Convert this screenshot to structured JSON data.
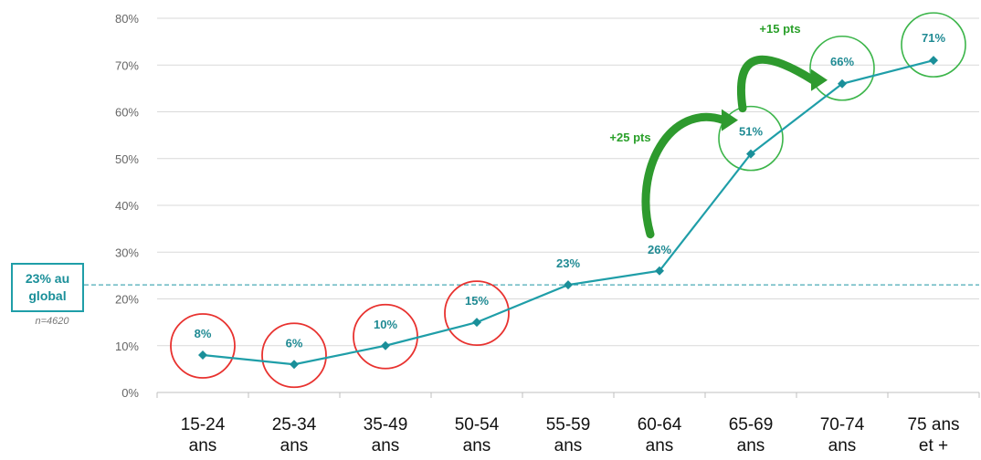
{
  "chart_data": {
    "type": "line",
    "categories": [
      [
        "15-24",
        "ans"
      ],
      [
        "25-34",
        "ans"
      ],
      [
        "35-49",
        "ans"
      ],
      [
        "50-54",
        "ans"
      ],
      [
        "55-59",
        "ans"
      ],
      [
        "60-64",
        "ans"
      ],
      [
        "65-69",
        "ans"
      ],
      [
        "70-74",
        "ans"
      ],
      [
        "75 ans",
        "et +"
      ]
    ],
    "values": [
      8,
      6,
      10,
      15,
      23,
      26,
      51,
      66,
      71
    ],
    "data_labels": [
      "8%",
      "6%",
      "10%",
      "15%",
      "23%",
      "26%",
      "51%",
      "66%",
      "71%"
    ],
    "ylim": [
      0,
      80
    ],
    "yticks": [
      "0%",
      "10%",
      "20%",
      "30%",
      "40%",
      "50%",
      "60%",
      "70%",
      "80%"
    ],
    "grid": true,
    "reference_line": {
      "value": 23,
      "style": "dashed"
    },
    "circled_low": [
      0,
      1,
      2,
      3
    ],
    "circled_high": [
      6,
      7,
      8
    ],
    "annotations": [
      {
        "text": "+25 pts",
        "from_index": 5,
        "to_index": 6
      },
      {
        "text": "+15 pts",
        "from_index": 6,
        "to_index": 7
      }
    ],
    "colors": {
      "line": "#1f9ea8",
      "marker": "#1a8f99",
      "grid": "#d9d9d9",
      "circle_low": "#e8322f",
      "circle_high": "#3cb54a",
      "arrow": "#2e9a2e",
      "reference": "#4aaab5"
    }
  },
  "global_box": {
    "line1": "23% au",
    "line2": "global"
  },
  "sample_size": "n=4620"
}
